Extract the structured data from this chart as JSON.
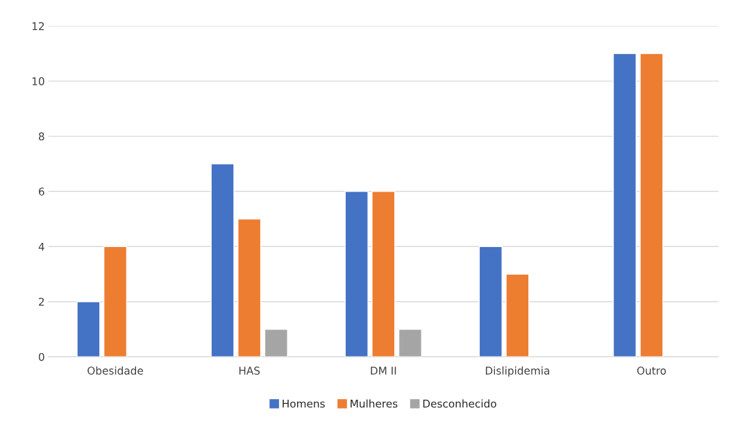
{
  "chart_data": {
    "type": "bar",
    "categories": [
      "Obesidade",
      "HAS",
      "DM II",
      "Dislipidemia",
      "Outro"
    ],
    "series": [
      {
        "name": "Homens",
        "color": "#4472c4",
        "values": [
          2,
          7,
          6,
          4,
          11
        ]
      },
      {
        "name": "Mulheres",
        "color": "#ed7d31",
        "values": [
          4,
          5,
          6,
          3,
          11
        ]
      },
      {
        "name": "Desconhecido",
        "color": "#a5a5a5",
        "values": [
          null,
          1,
          1,
          null,
          null
        ]
      }
    ],
    "ylim": [
      0,
      12
    ],
    "yticks": [
      0,
      2,
      4,
      6,
      8,
      10,
      12
    ],
    "grid": "y",
    "legend": "bottom"
  }
}
